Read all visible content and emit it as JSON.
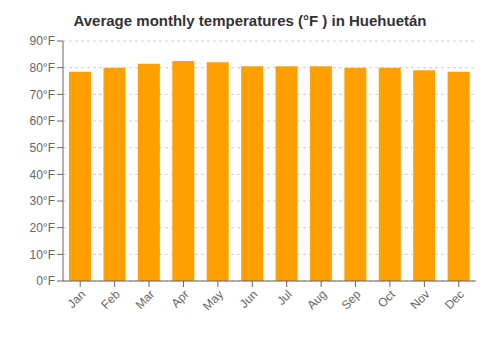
{
  "chart_data": {
    "type": "bar",
    "title": "Average monthly temperatures (°F ) in Huehuetán",
    "categories": [
      "Jan",
      "Feb",
      "Mar",
      "Apr",
      "May",
      "Jun",
      "Jul",
      "Aug",
      "Sep",
      "Oct",
      "Nov",
      "Dec"
    ],
    "values": [
      78.5,
      80.0,
      81.5,
      82.5,
      82.0,
      80.5,
      80.5,
      80.5,
      80.0,
      80.0,
      79.0,
      78.5
    ],
    "color": "#FFA000",
    "ylim": [
      0,
      90
    ],
    "yticks": [
      {
        "value": 0,
        "label": "0°F"
      },
      {
        "value": 10,
        "label": "10°F"
      },
      {
        "value": 20,
        "label": "20°F"
      },
      {
        "value": 30,
        "label": "30°F"
      },
      {
        "value": 40,
        "label": "40°F"
      },
      {
        "value": 50,
        "label": "50°F"
      },
      {
        "value": 60,
        "label": "60°F"
      },
      {
        "value": 70,
        "label": "70°F"
      },
      {
        "value": 80,
        "label": "80°F"
      },
      {
        "value": 90,
        "label": "90°F"
      }
    ],
    "grid": true
  }
}
